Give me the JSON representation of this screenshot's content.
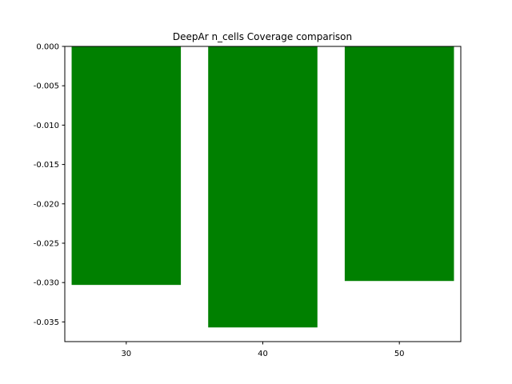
{
  "chart_data": {
    "type": "bar",
    "title": "DeepAr n_cells Coverage comparison",
    "xlabel": "",
    "ylabel": "",
    "categories": [
      "30",
      "40",
      "50"
    ],
    "values": [
      -0.0303,
      -0.0357,
      -0.0298
    ],
    "ylim": [
      -0.0375,
      0.0
    ],
    "xlim": [
      25.5,
      54.5
    ],
    "bar_width": 8,
    "yticks": [
      "0.000",
      "-0.005",
      "-0.010",
      "-0.015",
      "-0.020",
      "-0.025",
      "-0.030",
      "-0.035"
    ],
    "ytick_values": [
      0.0,
      -0.005,
      -0.01,
      -0.015,
      -0.02,
      -0.025,
      -0.03,
      -0.035
    ],
    "xtick_values": [
      30,
      40,
      50
    ],
    "bar_color": "#008000",
    "grid": false,
    "legend": "none"
  }
}
